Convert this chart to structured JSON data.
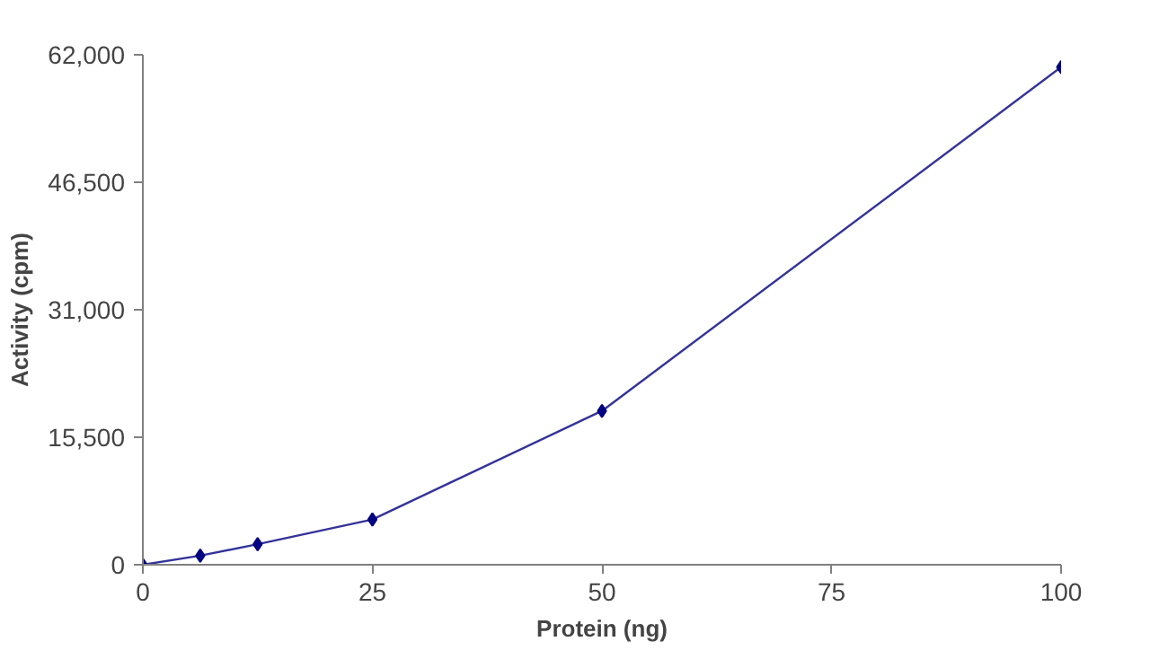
{
  "chart_data": {
    "type": "line",
    "xlabel": "Protein (ng)",
    "ylabel": "Activity (cpm)",
    "x": [
      0,
      6.25,
      12.5,
      25,
      50,
      100
    ],
    "series": [
      {
        "color": "#333399",
        "values": [
          0,
          1100,
          2500,
          5500,
          18700,
          60500
        ]
      }
    ],
    "xlim": [
      0,
      100
    ],
    "xticks": [
      0,
      25,
      50,
      75,
      100
    ],
    "ylim": [
      0,
      62000
    ],
    "yticks": [
      {
        "value": 0,
        "label": "0"
      },
      {
        "value": 15500,
        "label": "15,500"
      },
      {
        "value": 31000,
        "label": "31,000"
      },
      {
        "value": 46500,
        "label": "46,500"
      },
      {
        "value": 62000,
        "label": "62,000"
      }
    ],
    "grid": false,
    "marker": "diamond",
    "line_style": "solid"
  }
}
